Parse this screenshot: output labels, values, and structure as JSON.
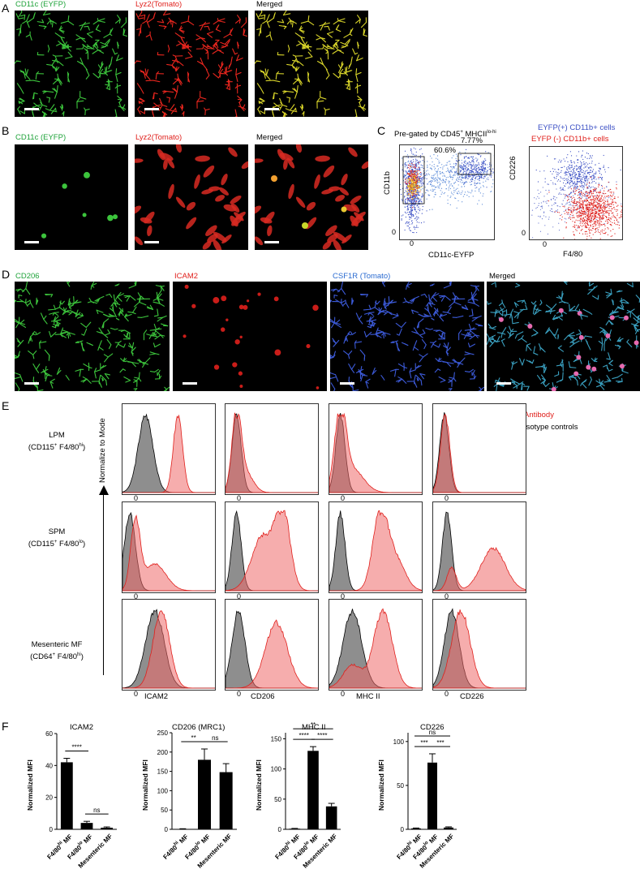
{
  "panelA": {
    "letter": "A",
    "titles": [
      "CD11c (EYFP)",
      "Lyz2(Tomato)",
      "Merged"
    ]
  },
  "panelB": {
    "letter": "B",
    "titles": [
      "CD11c (EYFP)",
      "Lyz2(Tomato)",
      "Merged"
    ]
  },
  "panelC": {
    "letter": "C",
    "title_main": "Pre-gated by CD45",
    "title_sup1": "+",
    "title_mid": " MHCII",
    "title_sup2": "lo-hi",
    "gate1": "60.6%",
    "gate2": "7.77%",
    "ylabel_left": "CD11b",
    "xlabel_left": "CD11c-EYFP",
    "tick0_y": "0",
    "tick0_x": "0",
    "legend_blue": "EYFP(+) CD11b+ cells",
    "legend_red": "EYFP (-) CD11b+ cells",
    "ylabel_right": "CD226",
    "xlabel_right": "F4/80",
    "tick0_right_y": "0",
    "tick0_right_x": "0",
    "colors": {
      "blue": "#3b4fc4",
      "red": "#e0201c"
    }
  },
  "panelD": {
    "letter": "D",
    "titles": [
      "CD206",
      "ICAM2",
      "CSF1R (Tomato)",
      "Merged"
    ],
    "title_colors": [
      "#1fa33a",
      "#e0201c",
      "#2a6bd1",
      "#000000"
    ]
  },
  "panelE": {
    "letter": "E",
    "legend_antibody": "Antibody",
    "legend_isotype": "Isotype controls",
    "yaxis_label": "Normalize to Mode",
    "rows": [
      {
        "name": "LPM",
        "sub_pre": "(CD115",
        "sub_sup1": "+",
        "sub_mid": " F4/80",
        "sub_sup2": "hi",
        "sub_post": ")"
      },
      {
        "name": "SPM",
        "sub_pre": "(CD115",
        "sub_sup1": "+",
        "sub_mid": " F4/80",
        "sub_sup2": "lo",
        "sub_post": ")"
      },
      {
        "name": "Mesenteric MF",
        "sub_pre": "(CD64",
        "sub_sup1": "+",
        "sub_mid": " F4/80",
        "sub_sup2": "hi",
        "sub_post": ")"
      }
    ],
    "columns": [
      "ICAM2",
      "CD206",
      "MHC II",
      "CD226"
    ],
    "zero": "0"
  },
  "panelF": {
    "letter": "F",
    "ylabel": "Normalized MFI",
    "categories": [
      "F4/80hi MF",
      "F4/80lo MF",
      "Mesenteric MF"
    ],
    "cat_parts": [
      {
        "pre": "F4/80",
        "sup": "hi",
        "post": " MF"
      },
      {
        "pre": "F4/80",
        "sup": "lo",
        "post": " MF"
      },
      {
        "pre": "Mesenteric MF",
        "sup": "",
        "post": ""
      }
    ]
  },
  "chart_data": [
    {
      "type": "bar",
      "title": "ICAM2",
      "ylabel": "Normalized MFI",
      "categories": [
        "F4/80hi MF",
        "F4/80lo MF",
        "Mesenteric MF"
      ],
      "values": [
        42,
        4,
        1
      ],
      "errors": [
        2.5,
        1,
        0.5
      ],
      "ylim": [
        0,
        60
      ],
      "yticks": [
        "0",
        "20",
        "40",
        "60"
      ],
      "significance": [
        {
          "from": 0,
          "to": 1,
          "label": "****"
        },
        {
          "from": 1,
          "to": 2,
          "label": "ns"
        }
      ]
    },
    {
      "type": "bar",
      "title": "CD206 (MRC1)",
      "ylabel": "Normalized MFI",
      "categories": [
        "F4/80hi MF",
        "F4/80lo MF",
        "Mesenteric MF"
      ],
      "values": [
        1,
        180,
        148
      ],
      "errors": [
        0.5,
        28,
        22
      ],
      "ylim": [
        0,
        250
      ],
      "yticks": [
        "0",
        "50",
        "100",
        "150",
        "200",
        "250"
      ],
      "significance": [
        {
          "from": 0,
          "to": 1,
          "label": "**"
        },
        {
          "from": 1,
          "to": 2,
          "label": "ns"
        }
      ]
    },
    {
      "type": "bar",
      "title": "MHC II",
      "ylabel": "Normalized MFI",
      "categories": [
        "F4/80hi MF",
        "F4/80lo MF",
        "Mesenteric MF"
      ],
      "values": [
        1,
        130,
        38
      ],
      "errors": [
        0.5,
        7,
        5
      ],
      "ylim": [
        0,
        160
      ],
      "yticks": [
        "0",
        "50",
        "100",
        "150"
      ],
      "significance": [
        {
          "from": 0,
          "to": 1,
          "label": "****"
        },
        {
          "from": 1,
          "to": 2,
          "label": "****"
        },
        {
          "from": 0,
          "to": 2,
          "label": "**"
        }
      ]
    },
    {
      "type": "bar",
      "title": "CD226",
      "ylabel": "Normalized MFI",
      "categories": [
        "F4/80hi MF",
        "F4/80lo MF",
        "Mesenteric MF"
      ],
      "values": [
        1,
        76,
        2
      ],
      "errors": [
        0.5,
        10,
        0.8
      ],
      "ylim": [
        0,
        110
      ],
      "yticks": [
        "0",
        "50",
        "100"
      ],
      "significance": [
        {
          "from": 0,
          "to": 1,
          "label": "***"
        },
        {
          "from": 1,
          "to": 2,
          "label": "***"
        },
        {
          "from": 0,
          "to": 2,
          "label": "ns"
        }
      ]
    }
  ]
}
